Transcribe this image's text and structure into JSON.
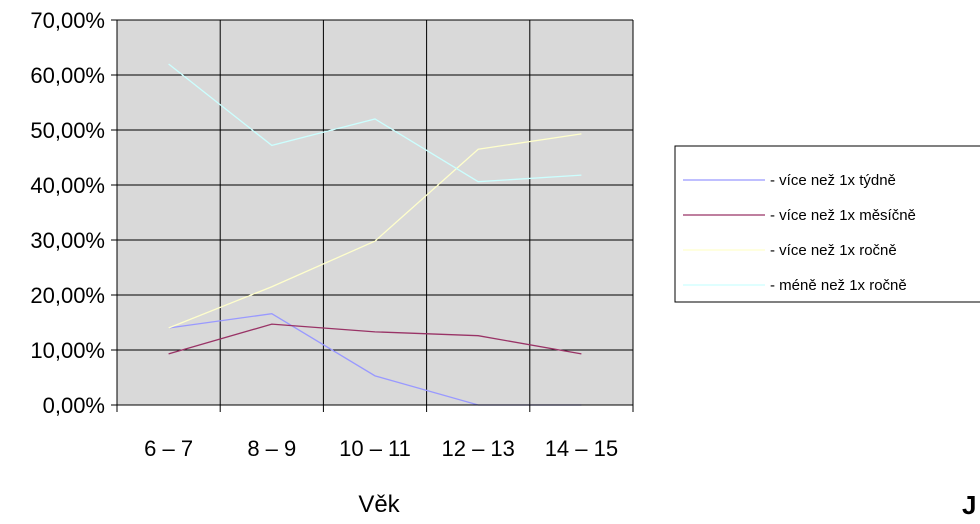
{
  "chart_data": {
    "type": "line",
    "title": "",
    "xlabel": "Věk",
    "ylabel": "",
    "categories": [
      "6 – 7",
      "8 – 9",
      "10 – 11",
      "12 – 13",
      "14 – 15"
    ],
    "ylim": [
      0,
      0.7
    ],
    "y_ticks": [
      0,
      0.1,
      0.2,
      0.3,
      0.4,
      0.5,
      0.6,
      0.7
    ],
    "y_tick_labels": [
      "0,00%",
      "10,00%",
      "20,00%",
      "30,00%",
      "40,00%",
      "50,00%",
      "60,00%",
      "70,00%"
    ],
    "grid": true,
    "plot_background": "#d9d9d9",
    "legend_position": "right",
    "series": [
      {
        "name": "- více než 1x týdně",
        "color": "#9999ff",
        "values": [
          0.14,
          0.166,
          0.053,
          0.0,
          0.0
        ]
      },
      {
        "name": "- více než 1x měsíčně",
        "color": "#993366",
        "values": [
          0.093,
          0.147,
          0.133,
          0.126,
          0.093
        ]
      },
      {
        "name": "- více než 1x ročně",
        "color": "#ffffcc",
        "values": [
          0.14,
          0.215,
          0.298,
          0.465,
          0.493
        ]
      },
      {
        "name": "- méně než 1x ročně",
        "color": "#ccffff",
        "values": [
          0.62,
          0.472,
          0.52,
          0.406,
          0.418
        ]
      }
    ]
  },
  "edge_text": "J"
}
